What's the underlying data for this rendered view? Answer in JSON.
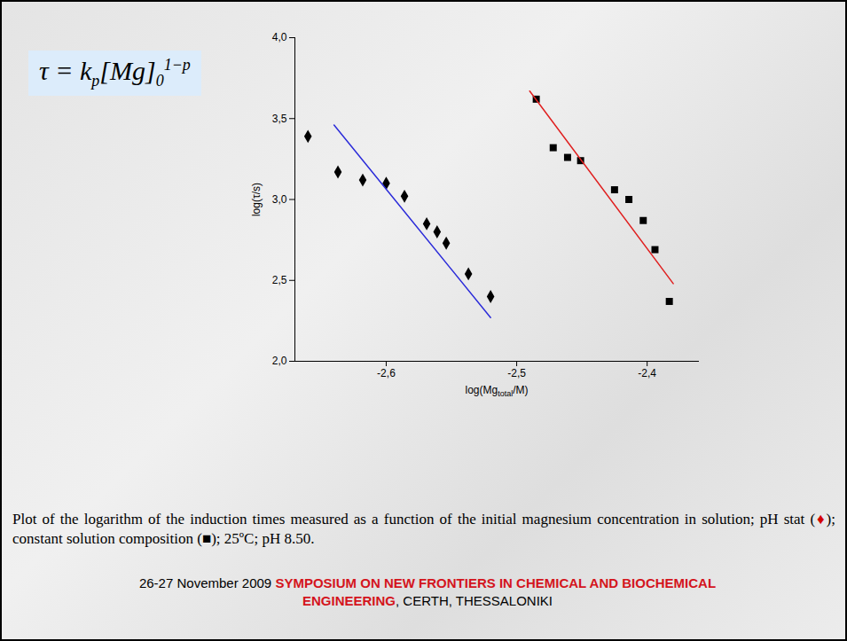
{
  "chart_data": {
    "type": "scatter",
    "formula": [
      {
        "text": "τ = k"
      },
      {
        "text": "p",
        "sub": true
      },
      {
        "text": "[Mg]"
      },
      {
        "text": "0",
        "sub": true
      },
      {
        "text": "1−p",
        "sup": true
      }
    ],
    "xlabel": [
      {
        "text": "log(Mg"
      },
      {
        "text": "total",
        "sub": true
      },
      {
        "text": "/M)"
      }
    ],
    "ylabel": "log(τ/s)",
    "xlim": [
      -2.67,
      -2.36
    ],
    "xticks": [
      {
        "value": -2.6,
        "label": "-2,6"
      },
      {
        "value": -2.5,
        "label": "-2,5"
      },
      {
        "value": -2.4,
        "label": "-2,4"
      }
    ],
    "ylim": [
      2.0,
      4.0
    ],
    "yticks": [
      {
        "value": 2.0,
        "label": "2,0"
      },
      {
        "value": 2.5,
        "label": "2,5"
      },
      {
        "value": 3.0,
        "label": "3,0"
      },
      {
        "value": 3.5,
        "label": "3,5"
      },
      {
        "value": 4.0,
        "label": "4,0"
      }
    ],
    "grid": false,
    "series": [
      {
        "type": "scatter",
        "marker": "diamond",
        "color": "#000000",
        "x": [
          -2.66,
          -2.637,
          -2.618,
          -2.6,
          -2.586,
          -2.569,
          -2.561,
          -2.554,
          -2.537,
          -2.52
        ],
        "values": [
          3.39,
          3.17,
          3.12,
          3.1,
          3.02,
          2.85,
          2.8,
          2.73,
          2.54,
          2.4
        ]
      },
      {
        "type": "scatter",
        "marker": "square",
        "color": "#000000",
        "x": [
          -2.485,
          -2.472,
          -2.461,
          -2.451,
          -2.425,
          -2.414,
          -2.403,
          -2.394,
          -2.383
        ],
        "values": [
          3.62,
          3.32,
          3.26,
          3.24,
          3.06,
          3.0,
          2.87,
          2.69,
          2.37
        ]
      },
      {
        "type": "line",
        "color": "#2b2bd9",
        "x": [
          -2.64,
          -2.52
        ],
        "values": [
          3.46,
          2.27
        ]
      },
      {
        "type": "line",
        "color": "#e02020",
        "x": [
          -2.49,
          -2.38
        ],
        "values": [
          3.67,
          2.48
        ]
      }
    ],
    "caption": [
      {
        "text": "Plot of the logarithm of the induction times measured as a function of the initial magnesium concentration in solution; pH stat ("
      },
      {
        "text": "♦",
        "color": "#d40000"
      },
      {
        "text": "); constant solution composition ("
      },
      {
        "text": "■",
        "color": "#000000"
      },
      {
        "text": "); 25ºC; pH 8.50."
      }
    ],
    "footer": [
      {
        "text": "26-27 November 2009 ",
        "color": "#000000"
      },
      {
        "text": "SYMPOSIUM ON NEW FRONTIERS IN CHEMICAL AND BIOCHEMICAL ENGINEERING",
        "color": "#d4141c"
      },
      {
        "text": ", CERTH, THESSALONIKI",
        "color": "#000000"
      }
    ]
  }
}
